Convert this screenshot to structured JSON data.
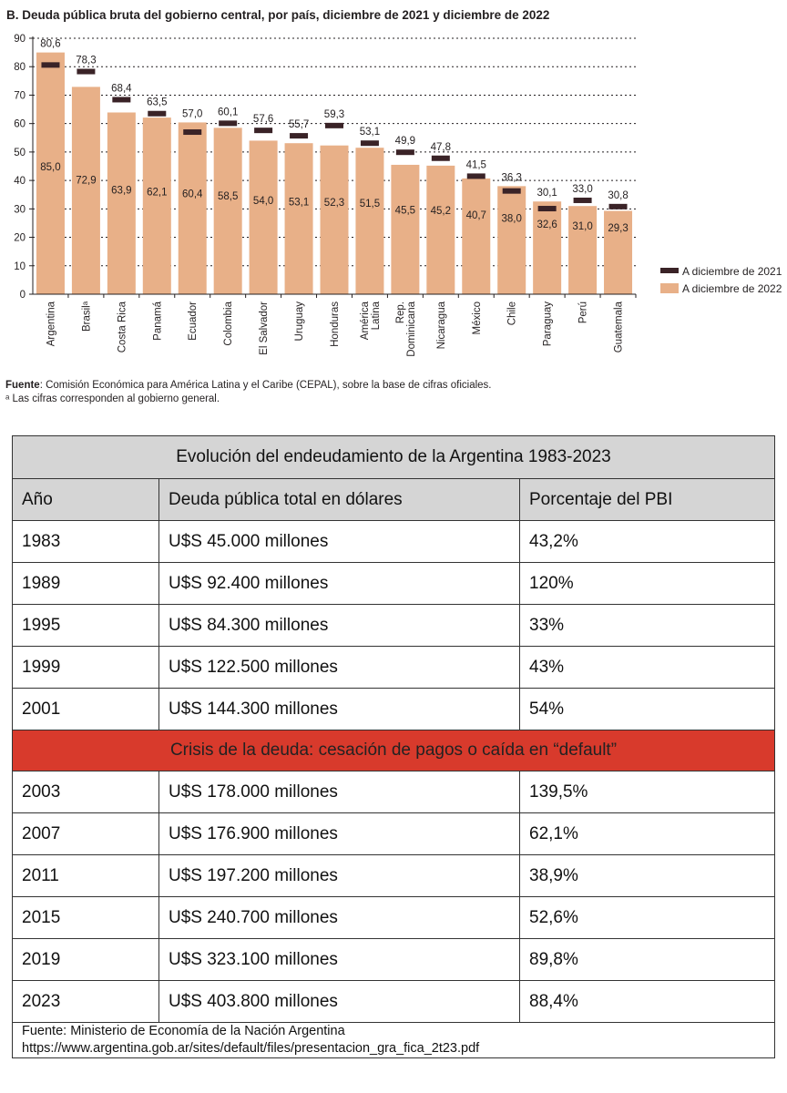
{
  "chart_data": {
    "type": "bar",
    "title": "B. Deuda pública bruta del gobierno central, por país, diciembre de 2021 y diciembre de 2022",
    "categories": [
      "Argentina",
      "Brasilᵃ",
      "Costa Rica",
      "Panamá",
      "Ecuador",
      "Colombia",
      "El Salvador",
      "Uruguay",
      "Honduras",
      "América Latina",
      "Rep. Dominicana",
      "Nicaragua",
      "México",
      "Chile",
      "Paraguay",
      "Perú",
      "Guatemala"
    ],
    "series": [
      {
        "name": "A diciembre de 2022",
        "type": "bar",
        "color": "#e8b088",
        "values": [
          85.0,
          72.9,
          63.9,
          62.1,
          60.4,
          58.5,
          54.0,
          53.1,
          52.3,
          51.5,
          45.5,
          45.2,
          40.7,
          38.0,
          32.6,
          31.0,
          29.3
        ],
        "labels": [
          "85,0",
          "72,9",
          "63,9",
          "62,1",
          "60,4",
          "58,5",
          "54,0",
          "53,1",
          "52,3",
          "51,5",
          "45,5",
          "45,2",
          "40,7",
          "38,0",
          "32,6",
          "31,0",
          "29,3"
        ]
      },
      {
        "name": "A diciembre de 2021",
        "type": "marker",
        "color": "#3a2327",
        "values": [
          80.6,
          78.3,
          68.4,
          63.5,
          57.0,
          60.1,
          57.6,
          55.7,
          59.3,
          53.1,
          49.9,
          47.8,
          41.5,
          36.3,
          30.1,
          33.0,
          30.8
        ],
        "labels": [
          "80,6",
          "78,3",
          "68,4",
          "63,5",
          "57,0",
          "60,1",
          "57,6",
          "55,7",
          "59,3",
          "53,1",
          "49,9",
          "47,8",
          "41,5",
          "36,3",
          "30,1",
          "33,0",
          "30,8"
        ]
      }
    ],
    "yticks": [
      "0",
      "10",
      "20",
      "30",
      "40",
      "50",
      "60",
      "70",
      "80",
      "90"
    ],
    "ylim": [
      0,
      90
    ],
    "gridlines": "dotted horizontal",
    "legend": "right",
    "xlabel": "",
    "ylabel": ""
  },
  "chart_notes": {
    "source_label": "Fuente",
    "source_text": ": Comisión Económica para América Latina y el Caribe (CEPAL), sobre la base de cifras oficiales.",
    "footnote_a": "ᵃ Las cifras corresponden al gobierno general."
  },
  "table": {
    "title": "Evolución del endeudamiento de la Argentina 1983-2023",
    "headers": [
      "Año",
      "Deuda pública total en dólares",
      "Porcentaje del PBI"
    ],
    "rows_before": [
      [
        "1983",
        "U$S 45.000 millones",
        "43,2%"
      ],
      [
        "1989",
        "U$S 92.400 millones",
        "120%"
      ],
      [
        "1995",
        "U$S 84.300 millones",
        "33%"
      ],
      [
        "1999",
        "U$S 122.500 millones",
        "43%"
      ],
      [
        "2001",
        "U$S 144.300 millones",
        "54%"
      ]
    ],
    "crisis": "Crisis de la deuda: cesación de pagos o caída en “default”",
    "rows_after": [
      [
        "2003",
        "U$S 178.000 millones",
        "139,5%"
      ],
      [
        "2007",
        "U$S 176.900 millones",
        "62,1%"
      ],
      [
        "2011",
        "U$S 197.200 millones",
        "38,9%"
      ],
      [
        "2015",
        "U$S 240.700 millones",
        "52,6%"
      ],
      [
        "2019",
        "U$S 323.100 millones",
        "89,8%"
      ],
      [
        "2023",
        "U$S 403.800 millones",
        "88,4%"
      ]
    ],
    "source_line1": "Fuente: Ministerio de Economía de la Nación Argentina",
    "source_line2": "https://www.argentina.gob.ar/sites/default/files/presentacion_gra_fica_2t23.pdf"
  },
  "colors": {
    "bar_2022": "#e8b088",
    "marker_2021": "#3a2327",
    "crisis_band": "#d83a2c",
    "table_header": "#d5d5d5"
  }
}
